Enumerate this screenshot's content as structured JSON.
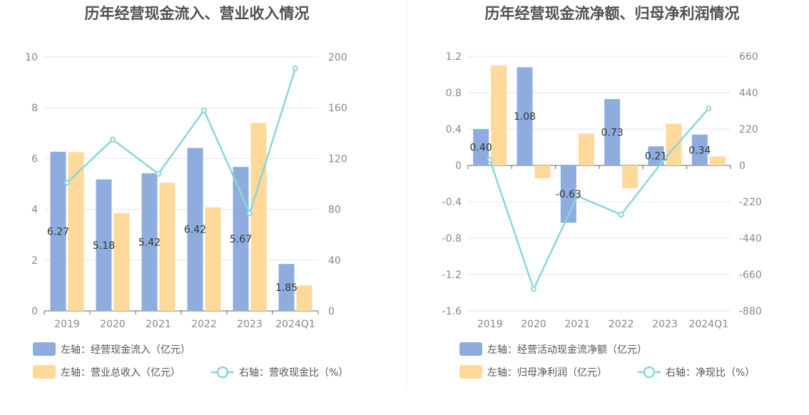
{
  "colors": {
    "bar_primary": "#8eadde",
    "bar_secondary": "#ffd99a",
    "line": "#8ad6d9",
    "grid": "#e3e6f0",
    "axis": "#666666",
    "divider": "#ececec"
  },
  "chart_data": [
    {
      "type": "bar",
      "title": "历年经营现金流入、营业收入情况",
      "categories": [
        "2019",
        "2020",
        "2021",
        "2022",
        "2023",
        "2024Q1"
      ],
      "left_axis": {
        "ticks": [
          "0",
          "2",
          "4",
          "6",
          "8",
          "10"
        ],
        "ylim": [
          0,
          10
        ]
      },
      "right_axis": {
        "ticks": [
          "0",
          "40",
          "80",
          "120",
          "160",
          "200"
        ],
        "ylim": [
          0,
          200
        ]
      },
      "series": [
        {
          "name": "左轴：经营现金流入（亿元）",
          "kind": "bar",
          "axis": "left",
          "color": "#8eadde",
          "values": [
            6.27,
            5.18,
            5.42,
            6.42,
            5.67,
            1.85
          ],
          "labels": [
            "6.27",
            "5.18",
            "5.42",
            "6.42",
            "5.67",
            "1.85"
          ]
        },
        {
          "name": "左轴：营业总收入（亿元）",
          "kind": "bar",
          "axis": "left",
          "color": "#ffd99a",
          "values": [
            6.25,
            3.85,
            5.05,
            4.08,
            7.4,
            1.0
          ]
        },
        {
          "name": "右轴：营收现金比（%）",
          "kind": "line",
          "axis": "right",
          "color": "#8ad6d9",
          "values": [
            101,
            135,
            108,
            158,
            77,
            191
          ]
        }
      ],
      "legend_placement": "bottom",
      "grid": true
    },
    {
      "type": "bar",
      "title": "历年经营现金流净额、归母净利润情况",
      "categories": [
        "2019",
        "2020",
        "2021",
        "2022",
        "2023",
        "2024Q1"
      ],
      "left_axis": {
        "ticks": [
          "-1.6",
          "-1.2",
          "-0.8",
          "-0.4",
          "0",
          "0.4",
          "0.8",
          "1.2"
        ],
        "ylim": [
          -1.6,
          1.2
        ]
      },
      "right_axis": {
        "ticks": [
          "-880",
          "-660",
          "-440",
          "-220",
          "0",
          "220",
          "440",
          "660"
        ],
        "ylim": [
          -880,
          660
        ]
      },
      "series": [
        {
          "name": "左轴：经营活动现金流净额（亿元）",
          "kind": "bar",
          "axis": "left",
          "color": "#8eadde",
          "values": [
            0.4,
            1.08,
            -0.63,
            0.73,
            0.21,
            0.34
          ],
          "labels": [
            "0.40",
            "1.08",
            "-0.63",
            "0.73",
            "0.21",
            "0.34"
          ]
        },
        {
          "name": "左轴：归母净利润（亿元）",
          "kind": "bar",
          "axis": "left",
          "color": "#ffd99a",
          "values": [
            1.1,
            -0.14,
            0.35,
            -0.25,
            0.46,
            0.1
          ]
        },
        {
          "name": "右轴：净现比（%）",
          "kind": "line",
          "axis": "right",
          "color": "#8ad6d9",
          "values": [
            34,
            -748,
            -185,
            -298,
            43,
            345
          ]
        }
      ],
      "legend_placement": "bottom",
      "grid": true
    }
  ]
}
